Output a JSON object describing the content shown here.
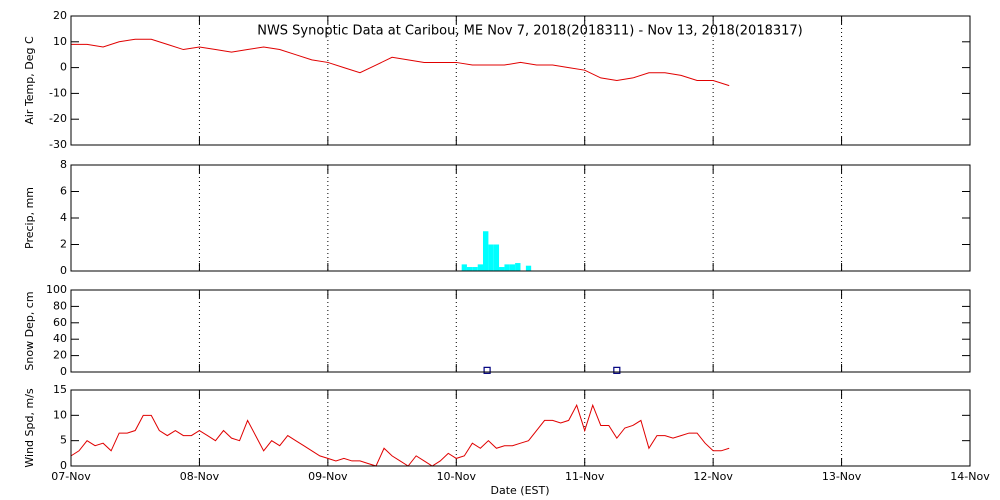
{
  "title": "NWS Synoptic Data at Caribou, ME   Nov  7, 2018(2018311) - Nov 13, 2018(2018317)",
  "x_axis": {
    "label": "Date (EST)",
    "xlim": [
      0,
      7
    ],
    "xticks": [
      {
        "value": 0,
        "label": "07-Nov"
      },
      {
        "value": 1,
        "label": "08-Nov"
      },
      {
        "value": 2,
        "label": "09-Nov"
      },
      {
        "value": 3,
        "label": "10-Nov"
      },
      {
        "value": 4,
        "label": "11-Nov"
      },
      {
        "value": 5,
        "label": "12-Nov"
      },
      {
        "value": 6,
        "label": "13-Nov"
      },
      {
        "value": 7,
        "label": "14-Nov"
      }
    ]
  },
  "chart_data": [
    {
      "type": "line",
      "ylabel": "Air Temp, Deg C",
      "color": "#e00000",
      "ylim": [
        -30,
        20
      ],
      "yticks": [
        -30,
        -20,
        -10,
        0,
        10,
        20
      ],
      "x": [
        0,
        0.125,
        0.25,
        0.375,
        0.5,
        0.625,
        0.75,
        0.875,
        1,
        1.125,
        1.25,
        1.375,
        1.5,
        1.625,
        1.75,
        1.875,
        2,
        2.125,
        2.25,
        2.375,
        2.5,
        2.625,
        2.75,
        2.875,
        3,
        3.125,
        3.25,
        3.375,
        3.5,
        3.625,
        3.75,
        3.875,
        4,
        4.125,
        4.25,
        4.375,
        4.5,
        4.625,
        4.75,
        4.875,
        5,
        5.125
      ],
      "values": [
        9,
        9,
        8,
        10,
        11,
        11,
        9,
        7,
        8,
        7,
        6,
        7,
        8,
        7,
        5,
        3,
        2,
        0,
        -2,
        1,
        4,
        3,
        2,
        2,
        2,
        1,
        1,
        1,
        2,
        1,
        1,
        0,
        -1,
        -4,
        -5,
        -4,
        -2,
        -2,
        -3,
        -5,
        -5,
        -7
      ]
    },
    {
      "type": "histogram",
      "ylabel": "Precip, mm",
      "color": "#00ffff",
      "ylim": [
        0,
        8
      ],
      "yticks": [
        0,
        2,
        4,
        6,
        8
      ],
      "bins": [
        3.042,
        3.083,
        3.125,
        3.167,
        3.208,
        3.25,
        3.292,
        3.333,
        3.375,
        3.417,
        3.458,
        3.5,
        3.542,
        3.583
      ],
      "values": [
        0.5,
        0.3,
        0.3,
        0.5,
        3,
        2,
        2,
        0.3,
        0.5,
        0.5,
        0.6,
        0,
        0.4
      ]
    },
    {
      "type": "scatter",
      "ylabel": "Snow Dep, cm",
      "color": "#000080",
      "ylim": [
        0,
        100
      ],
      "yticks": [
        0,
        20,
        40,
        60,
        80,
        100
      ],
      "x": [
        3.24,
        4.25
      ],
      "values": [
        2,
        2
      ]
    },
    {
      "type": "line",
      "ylabel": "Wind Spd, m/s",
      "color": "#e00000",
      "ylim": [
        0,
        15
      ],
      "yticks": [
        0,
        5,
        10,
        15
      ],
      "x": [
        0,
        0.0625,
        0.125,
        0.1875,
        0.25,
        0.3125,
        0.375,
        0.4375,
        0.5,
        0.5625,
        0.625,
        0.6875,
        0.75,
        0.8125,
        0.875,
        0.9375,
        1,
        1.0625,
        1.125,
        1.1875,
        1.25,
        1.3125,
        1.375,
        1.4375,
        1.5,
        1.5625,
        1.625,
        1.6875,
        1.75,
        1.8125,
        1.875,
        1.9375,
        2,
        2.0625,
        2.125,
        2.1875,
        2.25,
        2.3125,
        2.375,
        2.4375,
        2.5,
        2.5625,
        2.625,
        2.6875,
        2.75,
        2.8125,
        2.875,
        2.9375,
        3,
        3.0625,
        3.125,
        3.1875,
        3.25,
        3.3125,
        3.375,
        3.4375,
        3.5,
        3.5625,
        3.625,
        3.6875,
        3.75,
        3.8125,
        3.875,
        3.9375,
        4,
        4.0625,
        4.125,
        4.1875,
        4.25,
        4.3125,
        4.375,
        4.4375,
        4.5,
        4.5625,
        4.625,
        4.6875,
        4.75,
        4.8125,
        4.875,
        4.9375,
        5,
        5.0625,
        5.125
      ],
      "values": [
        2,
        3,
        5,
        4,
        4.5,
        3,
        6.5,
        6.5,
        7,
        10,
        10,
        7,
        6,
        7,
        6,
        6,
        7,
        6,
        5,
        7,
        5.5,
        5,
        9,
        6,
        3,
        5,
        4,
        6,
        5,
        4,
        3,
        2,
        1.5,
        1,
        1.5,
        1,
        1,
        0.5,
        0,
        3.5,
        2,
        1,
        0,
        2,
        1,
        0,
        1,
        2.5,
        1.5,
        2,
        4.5,
        3.5,
        5,
        3.5,
        4,
        4,
        4.5,
        5,
        7,
        9,
        9,
        8.5,
        9,
        12,
        7,
        12,
        8,
        8,
        5.5,
        7.5,
        8,
        9,
        3.5,
        6,
        6,
        5.5,
        6,
        6.5,
        6.5,
        4.5,
        3,
        3,
        3.5
      ]
    }
  ]
}
